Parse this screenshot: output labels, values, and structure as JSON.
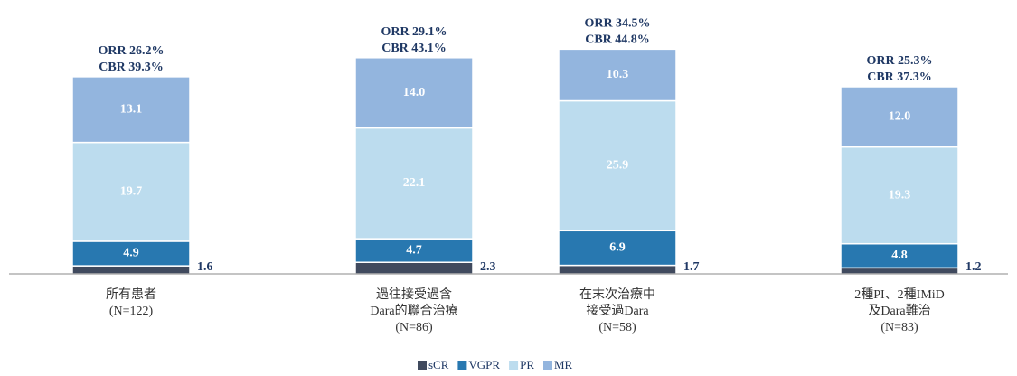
{
  "chart_data": {
    "type": "stacked_bar",
    "categories": [
      "所有患者\n(N=122)",
      "過往接受過含\nDara的聯合治療\n(N=86)",
      "在末次治療中\n接受過Dara\n(N=58)",
      "2種PI、2種IMiD\n及Dara難治\n(N=83)"
    ],
    "annotations": [
      [
        "ORR 26.2%",
        "CBR 39.3%"
      ],
      [
        "ORR 29.1%",
        "CBR 43.1%"
      ],
      [
        "ORR 34.5%",
        "CBR 44.8%"
      ],
      [
        "ORR 25.3%",
        "CBR 37.3%"
      ]
    ],
    "series": [
      {
        "name": "sCR",
        "color": "#404a5e",
        "values": [
          1.6,
          2.3,
          1.7,
          1.2
        ]
      },
      {
        "name": "VGPR",
        "color": "#2878b0",
        "values": [
          4.9,
          4.7,
          6.9,
          4.8
        ]
      },
      {
        "name": "PR",
        "color": "#bcdcee",
        "values": [
          19.7,
          22.1,
          25.9,
          19.3
        ]
      },
      {
        "name": "MR",
        "color": "#93b5de",
        "values": [
          13.1,
          14.0,
          10.3,
          12.0
        ],
        "value_labels": [
          "13.1",
          "14.0",
          "10.3",
          "12.0"
        ]
      }
    ]
  }
}
